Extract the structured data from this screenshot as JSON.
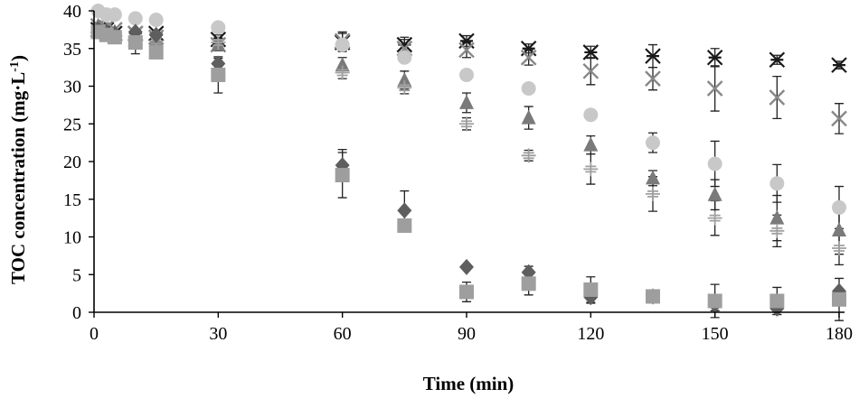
{
  "chart_data": {
    "type": "scatter",
    "xlabel": "Time (min)",
    "ylabel": "TOC concentration (mg·L",
    "ylabel_sup": "-1",
    "ylabel_close": ")",
    "xlim": [
      0,
      180
    ],
    "ylim": [
      0,
      40
    ],
    "x_ticks": [
      0,
      30,
      60,
      90,
      120,
      150,
      180
    ],
    "y_ticks": [
      0,
      5,
      10,
      15,
      20,
      25,
      30,
      35,
      40
    ],
    "grid": false,
    "legend": "none",
    "series": [
      {
        "marker": "xcross",
        "color": "#1a1a1a",
        "points": [
          [
            1,
            37.5
          ],
          [
            3,
            37.5
          ],
          [
            5,
            37
          ],
          [
            10,
            37
          ],
          [
            15,
            37
          ],
          [
            30,
            36.2
          ],
          [
            60,
            35.8
          ],
          [
            75,
            35.5
          ],
          [
            90,
            36
          ],
          [
            105,
            35
          ],
          [
            120,
            34.5
          ],
          [
            135,
            34
          ],
          [
            150,
            33.8
          ],
          [
            165,
            33.5
          ],
          [
            180,
            32.8
          ]
        ],
        "errors": [
          0,
          0,
          0,
          0,
          0,
          0.6,
          1.2,
          1.0,
          0.7,
          0.6,
          0.8,
          1.5,
          1.2,
          0.6,
          0.5
        ]
      },
      {
        "marker": "x",
        "color": "#888888",
        "points": [
          [
            1,
            38
          ],
          [
            3,
            37.8
          ],
          [
            5,
            37.5
          ],
          [
            10,
            37
          ],
          [
            15,
            36.5
          ],
          [
            30,
            35.5
          ],
          [
            60,
            36
          ],
          [
            75,
            35
          ],
          [
            90,
            34.8
          ],
          [
            105,
            33.8
          ],
          [
            120,
            32
          ],
          [
            135,
            31
          ],
          [
            150,
            29.7
          ],
          [
            165,
            28.5
          ],
          [
            180,
            25.7
          ]
        ],
        "errors": [
          0,
          0,
          0,
          0,
          0,
          0.8,
          1.2,
          1.2,
          1.0,
          1.0,
          1.8,
          1.5,
          3.0,
          2.8,
          2.0
        ]
      },
      {
        "marker": "circle",
        "color": "#c8c8c8",
        "points": [
          [
            1,
            40
          ],
          [
            3,
            39.5
          ],
          [
            5,
            39.5
          ],
          [
            10,
            39
          ],
          [
            15,
            38.8
          ],
          [
            30,
            37.8
          ],
          [
            60,
            35.5
          ],
          [
            75,
            33.8
          ],
          [
            90,
            31.5
          ],
          [
            105,
            29.7
          ],
          [
            120,
            26.2
          ],
          [
            135,
            22.5
          ],
          [
            150,
            19.7
          ],
          [
            165,
            17.1
          ],
          [
            180,
            13.9
          ]
        ],
        "errors": [
          0,
          0,
          0,
          0,
          0,
          0,
          0,
          0,
          0,
          0,
          0,
          1.3,
          3.0,
          2.5,
          2.8
        ]
      },
      {
        "marker": "triangle",
        "color": "#7a7a7a",
        "points": [
          [
            1,
            38
          ],
          [
            3,
            37.5
          ],
          [
            5,
            37.2
          ],
          [
            10,
            36.2
          ],
          [
            15,
            36
          ],
          [
            30,
            35.5
          ],
          [
            60,
            32.8
          ],
          [
            75,
            30.8
          ],
          [
            90,
            27.8
          ],
          [
            105,
            25.8
          ],
          [
            120,
            22.2
          ],
          [
            135,
            17.8
          ],
          [
            150,
            15.6
          ],
          [
            165,
            12.5
          ],
          [
            180,
            10.9
          ]
        ],
        "errors": [
          0,
          0,
          0,
          0,
          0,
          0.8,
          1.0,
          1.2,
          1.3,
          1.5,
          1.2,
          1.0,
          2.0,
          3.0,
          3.2
        ]
      },
      {
        "marker": "plus",
        "color": "#a0a0a0",
        "points": [
          [
            1,
            37.2
          ],
          [
            3,
            37
          ],
          [
            5,
            36.8
          ],
          [
            10,
            36.5
          ],
          [
            15,
            36
          ],
          [
            30,
            35.8
          ],
          [
            60,
            31.8
          ],
          [
            75,
            29.8
          ],
          [
            90,
            25
          ],
          [
            105,
            20.8
          ],
          [
            120,
            19
          ],
          [
            135,
            15.7
          ],
          [
            150,
            12.5
          ],
          [
            165,
            10.8
          ],
          [
            180,
            8.5
          ]
        ],
        "errors": [
          0,
          0,
          0,
          0,
          0,
          0.6,
          0.8,
          0.8,
          0.8,
          0.7,
          2.0,
          2.3,
          2.3,
          2.1,
          2.2
        ]
      },
      {
        "marker": "diamond",
        "color": "#5e5e5e",
        "points": [
          [
            1,
            37.5
          ],
          [
            3,
            37.2
          ],
          [
            5,
            37
          ],
          [
            10,
            37.2
          ],
          [
            15,
            36.8
          ],
          [
            30,
            33
          ],
          [
            60,
            19.5
          ],
          [
            75,
            13.5
          ],
          [
            90,
            6
          ],
          [
            105,
            5.3
          ],
          [
            120,
            2
          ],
          [
            135,
            2.1
          ],
          [
            150,
            1
          ],
          [
            165,
            0.5
          ],
          [
            180,
            2.8
          ]
        ],
        "errors": [
          0,
          0,
          0,
          0,
          0,
          0.7,
          2.1,
          2.6,
          0,
          0.8,
          0.8,
          0.6,
          0.8,
          0.8,
          0
        ]
      },
      {
        "marker": "square",
        "color": "#9e9e9e",
        "points": [
          [
            1,
            37.2
          ],
          [
            3,
            36.8
          ],
          [
            5,
            36.5
          ],
          [
            10,
            35.8
          ],
          [
            15,
            34.5
          ],
          [
            30,
            31.5
          ],
          [
            60,
            18.2
          ],
          [
            75,
            11.5
          ],
          [
            90,
            2.7
          ],
          [
            105,
            3.8
          ],
          [
            120,
            3
          ],
          [
            135,
            2.1
          ],
          [
            150,
            1.5
          ],
          [
            165,
            1.5
          ],
          [
            180,
            1.7
          ]
        ],
        "errors": [
          0,
          0,
          0,
          1.5,
          0.8,
          2.4,
          3.0,
          0,
          1.3,
          1.5,
          1.7,
          0.8,
          2.2,
          1.8,
          2.8
        ]
      }
    ]
  }
}
